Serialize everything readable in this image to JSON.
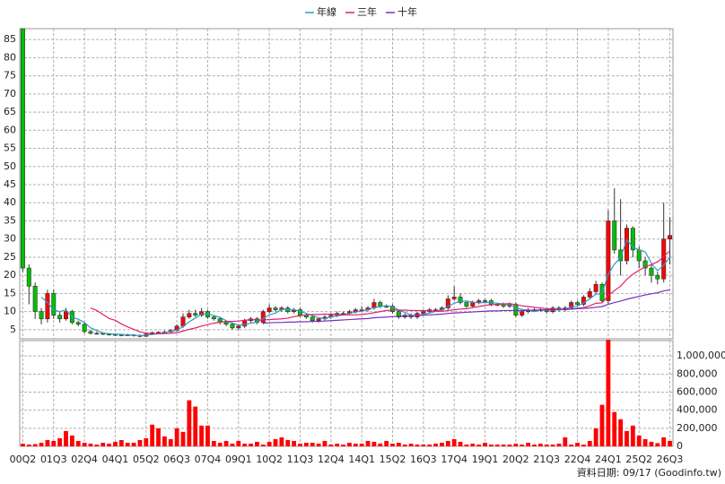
{
  "chart_data": {
    "type": "candlestick",
    "legend": "top",
    "grid": true,
    "categories": [
      "00Q2",
      null,
      null,
      null,
      null,
      "01Q3",
      null,
      null,
      null,
      null,
      "02Q4",
      null,
      null,
      null,
      null,
      "04Q1",
      null,
      null,
      null,
      null,
      "05Q2",
      null,
      null,
      null,
      null,
      "06Q3",
      null,
      null,
      null,
      null,
      "07Q4",
      null,
      null,
      null,
      null,
      "09Q1",
      null,
      null,
      null,
      null,
      "10Q2",
      null,
      null,
      null,
      null,
      "11Q3",
      null,
      null,
      null,
      null,
      "12Q4",
      null,
      null,
      null,
      null,
      "14Q1",
      null,
      null,
      null,
      null,
      "15Q2",
      null,
      null,
      null,
      null,
      "16Q3",
      null,
      null,
      null,
      null,
      "17Q4",
      null,
      null,
      null,
      null,
      "19Q1",
      null,
      null,
      null,
      null,
      "20Q2",
      null,
      null,
      null,
      null,
      "21Q3",
      null,
      null,
      null,
      null,
      "22Q4",
      null,
      null,
      null,
      null,
      "24Q1",
      null,
      null,
      null,
      null,
      "25Q2",
      null,
      null,
      null,
      null,
      "26Q3"
    ],
    "open": [
      88,
      22,
      17,
      10,
      8,
      15,
      9,
      8,
      10,
      7,
      6.5,
      4.5,
      4,
      4,
      3.8,
      3.7,
      3.6,
      3.5,
      3.6,
      3.4,
      3.2,
      3.8,
      4.2,
      4.3,
      4.4,
      4.8,
      6,
      8.5,
      9.5,
      9,
      10,
      8.5,
      8,
      7,
      6.5,
      5.5,
      6,
      7.5,
      8,
      7,
      10,
      11,
      10.5,
      11,
      10,
      10.5,
      9,
      8.5,
      7.5,
      8,
      8.5,
      9,
      9.5,
      9.5,
      10,
      10.5,
      10.5,
      11,
      12.5,
      11.5,
      11.5,
      10,
      8.5,
      9,
      8.5,
      9.5,
      10,
      10.5,
      10.5,
      11,
      13.5,
      14,
      12.5,
      11.5,
      12.5,
      13,
      13,
      12,
      12,
      11.5,
      12,
      9,
      10,
      10.5,
      10.5,
      10.5,
      10,
      11,
      10.5,
      11,
      12.5,
      12,
      14,
      15.5,
      17.5,
      13,
      35,
      27,
      24,
      33,
      27,
      24,
      22,
      20,
      19,
      30
    ],
    "high": [
      88,
      23,
      18,
      11,
      16,
      16,
      10,
      11,
      10.5,
      7.5,
      7,
      5,
      4.5,
      4.3,
      4.1,
      4,
      3.9,
      3.9,
      3.8,
      3.7,
      4.1,
      4.5,
      4.6,
      4.8,
      5.2,
      6.5,
      9.5,
      10.5,
      10.5,
      11,
      10.5,
      9,
      8.5,
      7.5,
      7,
      6.5,
      8,
      8.5,
      8.5,
      10.5,
      12,
      11.5,
      11.5,
      11.5,
      11,
      11,
      9.5,
      9,
      8.5,
      9,
      9.5,
      10,
      10,
      10.5,
      11,
      11.5,
      11.5,
      13.5,
      13,
      12,
      12,
      10.5,
      9.5,
      9.5,
      10,
      10.5,
      11,
      11,
      11.5,
      14.5,
      17,
      15,
      13,
      13,
      13.5,
      13.5,
      13.5,
      12.5,
      12.5,
      12.5,
      12.5,
      10.5,
      11,
      11,
      11,
      11,
      11.5,
      11.5,
      11.5,
      13,
      13,
      14.5,
      16.5,
      18.5,
      18,
      38,
      44,
      41,
      34,
      33.5,
      28,
      25,
      23,
      21,
      40,
      36
    ],
    "low": [
      21,
      12,
      8,
      6.5,
      7,
      8,
      7,
      7.5,
      6.5,
      6,
      4,
      3.7,
      3.7,
      3.5,
      3.4,
      3.3,
      3.2,
      3.3,
      3.1,
      2.9,
      3,
      3.5,
      4,
      4,
      4.1,
      4.5,
      5.5,
      8,
      8.5,
      8.5,
      8,
      7.5,
      6.5,
      6,
      5,
      5,
      5.5,
      7,
      6.5,
      6.5,
      9.5,
      10,
      10,
      9.5,
      9.5,
      8.5,
      8,
      7,
      7,
      7.5,
      8,
      8.5,
      9,
      9,
      9.5,
      10,
      10,
      10.5,
      11,
      11,
      9.5,
      8,
      8,
      8,
      8,
      9,
      9.5,
      10,
      10,
      10.5,
      13,
      12,
      11,
      11,
      12,
      12.5,
      11.5,
      11.5,
      11,
      11,
      8.5,
      8.5,
      9.5,
      10,
      10,
      9.5,
      9.5,
      10,
      10,
      10.5,
      11.5,
      11.5,
      13.5,
      15,
      12.5,
      12,
      26,
      20,
      23,
      25,
      22,
      20,
      18,
      17.5,
      18,
      23
    ],
    "close": [
      22,
      17,
      10,
      8,
      15,
      9,
      8,
      10,
      7,
      6.5,
      4.5,
      4,
      4,
      3.8,
      3.7,
      3.6,
      3.5,
      3.6,
      3.4,
      3.2,
      3.8,
      4.2,
      4.3,
      4.4,
      4.8,
      6,
      8.5,
      9.5,
      9,
      10,
      8.5,
      8,
      7,
      6.5,
      5.5,
      6,
      7.5,
      8,
      7,
      10,
      11,
      10.5,
      11,
      10,
      10.5,
      9,
      8.5,
      7.5,
      8,
      8.5,
      9,
      9.5,
      9.5,
      10,
      10.5,
      10.5,
      11,
      12.5,
      11.5,
      11.5,
      10,
      8.5,
      9,
      8.5,
      9.5,
      10,
      10.5,
      10.5,
      11,
      13.5,
      14,
      12.5,
      11.5,
      12.5,
      13,
      13,
      12,
      12,
      11.5,
      12,
      9,
      10,
      10.5,
      10.5,
      10.5,
      10,
      11,
      10.5,
      11,
      12.5,
      12,
      14,
      15.5,
      17.5,
      13,
      35,
      27,
      24,
      33,
      27,
      24,
      22,
      20,
      19,
      30,
      31
    ],
    "up_color": "#ff0000",
    "down_color": "#00c000",
    "ylim": [
      2.5,
      88
    ],
    "yticks": [
      5,
      10,
      15,
      20,
      25,
      30,
      35,
      40,
      45,
      50,
      55,
      60,
      65,
      70,
      75,
      80,
      85
    ],
    "lines": [
      {
        "name": "年線",
        "color": "#3399cc",
        "values": [
          null,
          null,
          null,
          14,
          12.5,
          10.5,
          10,
          10.5,
          8.5,
          7.9,
          7,
          5.5,
          4.8,
          4.1,
          3.9,
          3.8,
          3.7,
          3.6,
          3.5,
          3.4,
          3.5,
          3.7,
          3.9,
          4.2,
          4.5,
          4.9,
          5.9,
          7.2,
          8.2,
          9.3,
          9.3,
          8.9,
          8.4,
          7.5,
          6.8,
          6.3,
          6.4,
          6.8,
          7.1,
          8.1,
          9.1,
          9.6,
          10.6,
          10.6,
          10.5,
          10.1,
          9.5,
          8.9,
          8.3,
          8.1,
          8.5,
          8.8,
          9.1,
          9.5,
          9.9,
          10.1,
          10.5,
          11.1,
          11.4,
          11.6,
          11.4,
          10.4,
          9.8,
          9,
          8.9,
          9.3,
          9.6,
          10.1,
          10.5,
          11.4,
          12.3,
          12.8,
          12.9,
          12.6,
          12.4,
          12.5,
          12.5,
          12.3,
          12.1,
          11.9,
          11.1,
          10.6,
          10.4,
          10,
          10.4,
          10.4,
          10.5,
          10.5,
          10.6,
          11.3,
          11.5,
          12.4,
          13.5,
          14.8,
          15,
          20.3,
          23.1,
          24.8,
          29.8,
          27.8,
          27,
          26.5,
          23.3,
          21.3,
          22.8,
          25
        ]
      },
      {
        "name": "三年",
        "color": "#e0206a",
        "values": [
          null,
          null,
          null,
          null,
          null,
          null,
          null,
          null,
          null,
          null,
          null,
          11,
          10.3,
          9.2,
          8.1,
          7.6,
          6.6,
          5.8,
          5.1,
          4.4,
          4.1,
          3.9,
          3.9,
          3.9,
          4,
          4.2,
          4.6,
          5.1,
          5.5,
          6,
          6.4,
          6.8,
          7.1,
          7.3,
          7.3,
          7.4,
          7.6,
          7.8,
          7.7,
          7.7,
          7.8,
          7.9,
          8,
          8.2,
          8.6,
          8.9,
          9.1,
          9.2,
          9.2,
          9.3,
          9.3,
          9.2,
          9.1,
          9.1,
          9.1,
          9.2,
          9.4,
          9.7,
          10,
          10.3,
          10.4,
          10.4,
          10.4,
          10.3,
          10.3,
          10.3,
          10.2,
          10.1,
          10.1,
          10.3,
          10.5,
          10.7,
          10.8,
          11.1,
          11.4,
          11.7,
          11.9,
          12,
          12.1,
          12.2,
          11.9,
          11.6,
          11.4,
          11.2,
          11,
          10.8,
          10.7,
          10.6,
          10.6,
          10.7,
          10.9,
          11.1,
          11.6,
          12.3,
          12.4,
          14.4,
          15.8,
          17,
          18.9,
          20.3,
          21.4,
          22.3,
          23,
          23.7,
          25.2,
          26.7
        ]
      },
      {
        "name": "十年",
        "color": "#7a2fc0",
        "values": [
          null,
          null,
          null,
          null,
          null,
          null,
          null,
          null,
          null,
          null,
          null,
          null,
          null,
          null,
          null,
          null,
          null,
          null,
          null,
          null,
          null,
          null,
          null,
          null,
          null,
          null,
          null,
          null,
          null,
          null,
          null,
          null,
          null,
          null,
          null,
          null,
          null,
          null,
          null,
          6.8,
          6.9,
          7,
          7,
          7.1,
          7.1,
          7.2,
          7.2,
          7.3,
          7.3,
          7.4,
          7.5,
          7.6,
          7.7,
          7.8,
          7.9,
          8,
          8.1,
          8.3,
          8.4,
          8.5,
          8.6,
          8.7,
          8.8,
          8.8,
          8.9,
          9,
          9.1,
          9.2,
          9.3,
          9.5,
          9.6,
          9.7,
          9.8,
          9.9,
          10,
          10.1,
          10.2,
          10.2,
          10.3,
          10.3,
          10.3,
          10.3,
          10.3,
          10.4,
          10.4,
          10.5,
          10.5,
          10.6,
          10.6,
          10.7,
          10.8,
          10.9,
          11,
          11.2,
          11.4,
          12,
          12.5,
          12.9,
          13.4,
          13.8,
          14.2,
          14.6,
          14.9,
          15.2,
          15.7,
          16
        ]
      }
    ],
    "volume": {
      "color": "#ff0000",
      "ylim": [
        0,
        1170000
      ],
      "yticks": [
        0,
        {
          "value": 200000,
          "label": "200,000"
        },
        {
          "value": 400000,
          "label": "400,000"
        },
        {
          "value": 600000,
          "label": "600,000"
        },
        {
          "value": 800000,
          "label": "800,000"
        },
        {
          "value": 1000000,
          "label": "1,000,000"
        }
      ],
      "values": [
        30000,
        20000,
        25000,
        40000,
        70000,
        60000,
        90000,
        170000,
        120000,
        60000,
        40000,
        30000,
        20000,
        40000,
        30000,
        50000,
        70000,
        40000,
        40000,
        70000,
        90000,
        240000,
        200000,
        110000,
        80000,
        200000,
        160000,
        510000,
        440000,
        230000,
        230000,
        60000,
        40000,
        60000,
        30000,
        60000,
        30000,
        30000,
        50000,
        20000,
        50000,
        80000,
        100000,
        70000,
        60000,
        30000,
        40000,
        40000,
        30000,
        60000,
        20000,
        30000,
        20000,
        40000,
        30000,
        30000,
        60000,
        50000,
        30000,
        60000,
        30000,
        40000,
        20000,
        30000,
        20000,
        20000,
        20000,
        30000,
        40000,
        60000,
        80000,
        50000,
        20000,
        30000,
        20000,
        40000,
        20000,
        20000,
        20000,
        20000,
        30000,
        20000,
        40000,
        20000,
        30000,
        20000,
        20000,
        30000,
        100000,
        20000,
        40000,
        20000,
        60000,
        200000,
        460000,
        1180000,
        380000,
        300000,
        170000,
        230000,
        120000,
        80000,
        50000,
        35000,
        100000,
        60000
      ]
    },
    "footnote": "資料日期: 09/17 (Goodinfo.tw)"
  }
}
